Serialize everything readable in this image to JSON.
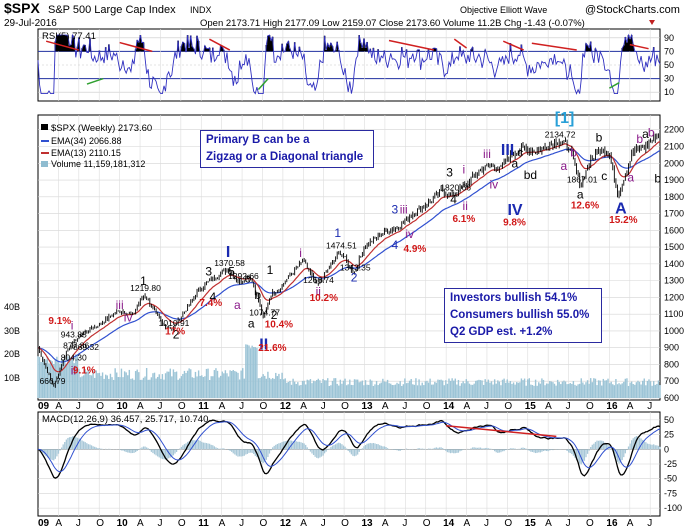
{
  "header": {
    "symbol": "$SPX",
    "name": "S&P 500 Large Cap Index",
    "exchange": "INDX",
    "date": "29-Jul-2016",
    "ohlc": "Open 2173.71  High 2177.09  Low 2159.07  Close 2173.60  Volume 11.2B  Chg -1.43 (-0.07%)",
    "source": "Objective Elliott Wave",
    "brand": "@StockCharts.com"
  },
  "rsi": {
    "label": "RSI(5) 77.41",
    "levels": [
      "90",
      "70",
      "50",
      "30",
      "10"
    ],
    "levels_num": [
      90,
      70,
      50,
      30,
      10
    ],
    "line_color": "#3030c0",
    "fill_color": "#000000"
  },
  "legend": {
    "main": "$SPX (Weekly) 2173.60",
    "ema34": "EMA(34) 2066.88",
    "ema13": "EMA(13) 2110.15",
    "volume": "Volume 11,159,181,312",
    "ema34_color": "#3050d0",
    "ema13_color": "#c03030"
  },
  "annotations": {
    "primary_box": [
      "Primary B can be a",
      "Zigzag or a Diagonal triangle"
    ],
    "sentiment_box": [
      "Investors bullish 54.1%",
      "Consumers bullish 55.0%",
      "Q2 GDP est. +1.2%"
    ]
  },
  "macd": {
    "label": "MACD(12,26,9) 36.457, 25.717, 10.740",
    "levels": [
      "50",
      "25",
      "0",
      "-25",
      "-50",
      "-75",
      "-100"
    ],
    "levels_num": [
      50,
      25,
      0,
      -25,
      -50,
      -75,
      -100
    ]
  },
  "x_axis": {
    "labels": [
      "09",
      "A",
      "J",
      "O",
      "10",
      "A",
      "J",
      "O",
      "11",
      "A",
      "J",
      "O",
      "12",
      "A",
      "J",
      "O",
      "13",
      "A",
      "J",
      "O",
      "14",
      "A",
      "J",
      "O",
      "15",
      "A",
      "J",
      "O",
      "16",
      "A",
      "J"
    ]
  },
  "chart_data": {
    "type": "line",
    "title": "$SPX S&P 500 Large Cap Index INDX",
    "series": [
      {
        "name": "$SPX (Weekly)",
        "x": [
          2009.0,
          2009.19,
          2009.35,
          2009.45,
          2009.6,
          2009.75,
          2009.95,
          2010.05,
          2010.15,
          2010.3,
          2010.52,
          2010.65,
          2010.8,
          2010.95,
          2011.1,
          2011.33,
          2011.45,
          2011.6,
          2011.7,
          2011.76,
          2011.85,
          2011.95,
          2012.1,
          2012.25,
          2012.42,
          2012.7,
          2012.87,
          2013.0,
          2013.2,
          2013.4,
          2013.6,
          2013.8,
          2013.95,
          2014.05,
          2014.2,
          2014.4,
          2014.55,
          2014.65,
          2014.79,
          2014.95,
          2015.1,
          2015.3,
          2015.38,
          2015.5,
          2015.65,
          2015.75,
          2015.9,
          2016.0,
          2016.11,
          2016.2,
          2016.3,
          2016.45,
          2016.58
        ],
        "y": [
          900,
          666.79,
          880,
          943.85,
          1000,
          1040,
          1110,
          1120,
          1090,
          1219.8,
          1040,
          1010.91,
          1120,
          1230,
          1300,
          1370.58,
          1292.66,
          1330,
          1180,
          1074.77,
          1220,
          1250,
          1340,
          1420,
          1266.74,
          1474.51,
          1343.35,
          1500,
          1580,
          1620,
          1700,
          1770,
          1840,
          1800,
          1860,
          1950,
          1990,
          1960,
          2050,
          2090,
          2070,
          2120,
          2134.72,
          2100,
          1867.01,
          2000,
          2100,
          2050,
          1810,
          1950,
          2080,
          2100,
          2173.6
        ]
      }
    ],
    "ylim": [
      600,
      2200
    ],
    "yticks": [
      600,
      700,
      800,
      900,
      1000,
      1100,
      1200,
      1300,
      1400,
      1500,
      1600,
      1700,
      1800,
      1900,
      2000,
      2100,
      2200
    ],
    "volume_labels": [
      "40B",
      "30B",
      "20B",
      "10B"
    ],
    "price_labels": [
      {
        "text": "943.85",
        "x": 2009.45,
        "y": 943.85
      },
      {
        "text": "877.86",
        "x": 2009.48,
        "y": 877.86
      },
      {
        "text": "869.32",
        "x": 2009.6,
        "y": 869.32
      },
      {
        "text": "804.30",
        "x": 2009.45,
        "y": 804.3
      },
      {
        "text": "666.79",
        "x": 2009.19,
        "y": 666.79
      },
      {
        "text": "1219.80",
        "x": 2010.3,
        "y": 1219.8
      },
      {
        "text": "1010.91",
        "x": 2010.65,
        "y": 1010.91
      },
      {
        "text": "1370.58",
        "x": 2011.33,
        "y": 1370.58
      },
      {
        "text": "1292.66",
        "x": 2011.5,
        "y": 1292.66
      },
      {
        "text": "1074.77",
        "x": 2011.76,
        "y": 1074.77
      },
      {
        "text": "1474.51",
        "x": 2012.7,
        "y": 1474.51
      },
      {
        "text": "1266.74",
        "x": 2012.42,
        "y": 1266.74
      },
      {
        "text": "1343.35",
        "x": 2012.87,
        "y": 1343.35
      },
      {
        "text": "1820.66",
        "x": 2014.1,
        "y": 1820.66
      },
      {
        "text": "2134.72",
        "x": 2015.38,
        "y": 2134.72
      },
      {
        "text": "1867.01",
        "x": 2015.65,
        "y": 1867.01
      }
    ],
    "wave_labels": [
      {
        "text": "i",
        "x": 2009.45,
        "y": 1010,
        "color": "#8a1a8a"
      },
      {
        "text": "ii",
        "x": 2009.45,
        "y": 740,
        "color": "#8a1a8a"
      },
      {
        "text": "iii",
        "x": 2010.0,
        "y": 1130,
        "color": "#8a1a8a"
      },
      {
        "text": "1",
        "x": 2010.3,
        "y": 1275,
        "color": "#000000"
      },
      {
        "text": "iv",
        "x": 2010.1,
        "y": 1055,
        "color": "#8a1a8a"
      },
      {
        "text": "2",
        "x": 2010.7,
        "y": 955,
        "color": "#000000"
      },
      {
        "text": "3",
        "x": 2011.1,
        "y": 1330,
        "color": "#000000"
      },
      {
        "text": "I",
        "x": 2011.35,
        "y": 1440,
        "color": "#1a2ab0"
      },
      {
        "text": "4",
        "x": 2011.15,
        "y": 1180,
        "color": "#000000"
      },
      {
        "text": "5",
        "x": 2011.38,
        "y": 1330,
        "color": "#000000"
      },
      {
        "text": "a",
        "x": 2011.45,
        "y": 1130,
        "color": "#8a1a8a"
      },
      {
        "text": "b",
        "x": 2011.7,
        "y": 1190,
        "color": "#000000"
      },
      {
        "text": "c",
        "x": 2011.58,
        "y": 1290,
        "color": "#000000"
      },
      {
        "text": "1",
        "x": 2011.85,
        "y": 1340,
        "color": "#000000"
      },
      {
        "text": "a",
        "x": 2011.62,
        "y": 1020,
        "color": "#000000"
      },
      {
        "text": "2",
        "x": 2011.9,
        "y": 1070,
        "color": "#000000"
      },
      {
        "text": "II",
        "x": 2011.76,
        "y": 890,
        "color": "#1a2ab0"
      },
      {
        "text": "i",
        "x": 2012.25,
        "y": 1440,
        "color": "#8a1a8a"
      },
      {
        "text": "ii",
        "x": 2012.45,
        "y": 1210,
        "color": "#8a1a8a"
      },
      {
        "text": "1",
        "x": 2012.68,
        "y": 1560,
        "color": "#1a2ab0"
      },
      {
        "text": "2",
        "x": 2012.88,
        "y": 1295,
        "color": "#1a2ab0"
      },
      {
        "text": "3",
        "x": 2013.38,
        "y": 1700,
        "color": "#1a2ab0"
      },
      {
        "text": "iii",
        "x": 2013.48,
        "y": 1700,
        "color": "#8a1a8a"
      },
      {
        "text": "iv",
        "x": 2013.55,
        "y": 1555,
        "color": "#8a1a8a"
      },
      {
        "text": "4",
        "x": 2013.38,
        "y": 1490,
        "color": "#1a2ab0"
      },
      {
        "text": "3",
        "x": 2014.05,
        "y": 1920,
        "color": "#000000"
      },
      {
        "text": "i",
        "x": 2014.25,
        "y": 1940,
        "color": "#8a1a8a"
      },
      {
        "text": "4",
        "x": 2014.1,
        "y": 1760,
        "color": "#000000"
      },
      {
        "text": "ii",
        "x": 2014.25,
        "y": 1720,
        "color": "#8a1a8a"
      },
      {
        "text": "iii",
        "x": 2014.5,
        "y": 2030,
        "color": "#8a1a8a"
      },
      {
        "text": "III",
        "x": 2014.72,
        "y": 2050,
        "color": "#1a2ab0"
      },
      {
        "text": "iv",
        "x": 2014.58,
        "y": 1850,
        "color": "#8a1a8a"
      },
      {
        "text": "IV",
        "x": 2014.8,
        "y": 1690,
        "color": "#1a2ab0"
      },
      {
        "text": "a",
        "x": 2014.85,
        "y": 1975,
        "color": "#000000"
      },
      {
        "text": "bd",
        "x": 2015.0,
        "y": 1905,
        "color": "#000000"
      },
      {
        "text": "c",
        "x": 2014.92,
        "y": 2040,
        "color": "#000000"
      },
      {
        "text": "[1]",
        "x": 2015.38,
        "y": 2240,
        "color": "#29a0d8"
      },
      {
        "text": "a",
        "x": 2015.45,
        "y": 1960,
        "color": "#8a1a8a"
      },
      {
        "text": "b",
        "x": 2015.57,
        "y": 2040,
        "color": "#8a1a8a"
      },
      {
        "text": "a",
        "x": 2015.65,
        "y": 1790,
        "color": "#000000"
      },
      {
        "text": "b",
        "x": 2015.88,
        "y": 2130,
        "color": "#000000"
      },
      {
        "text": "c",
        "x": 2015.95,
        "y": 1900,
        "color": "#000000"
      },
      {
        "text": "A",
        "x": 2016.12,
        "y": 1700,
        "color": "#1a2ab0"
      },
      {
        "text": "a",
        "x": 2016.27,
        "y": 1890,
        "color": "#8a1a8a"
      },
      {
        "text": "b",
        "x": 2016.38,
        "y": 2120,
        "color": "#8a1a8a"
      },
      {
        "text": "a",
        "x": 2016.45,
        "y": 2150,
        "color": "#000000"
      },
      {
        "text": "b",
        "x": 2016.52,
        "y": 2160,
        "color": "#8a1a8a"
      },
      {
        "text": "b",
        "x": 2016.6,
        "y": 1885,
        "color": "#000000"
      }
    ],
    "pct_labels": [
      {
        "text": "9.1%",
        "x": 2009.25,
        "y": 1040
      },
      {
        "text": "9.1%",
        "x": 2009.55,
        "y": 745
      },
      {
        "text": "17%",
        "x": 2010.68,
        "y": 980
      },
      {
        "text": "7.4%",
        "x": 2011.1,
        "y": 1150
      },
      {
        "text": "10.4%",
        "x": 2011.9,
        "y": 1020
      },
      {
        "text": "21.6%",
        "x": 2011.82,
        "y": 880
      },
      {
        "text": "10.2%",
        "x": 2012.45,
        "y": 1180
      },
      {
        "text": "4.9%",
        "x": 2013.6,
        "y": 1470
      },
      {
        "text": "6.1%",
        "x": 2014.2,
        "y": 1650
      },
      {
        "text": "9.8%",
        "x": 2014.82,
        "y": 1630
      },
      {
        "text": "12.6%",
        "x": 2015.65,
        "y": 1730
      },
      {
        "text": "15.2%",
        "x": 2016.12,
        "y": 1645
      }
    ]
  }
}
